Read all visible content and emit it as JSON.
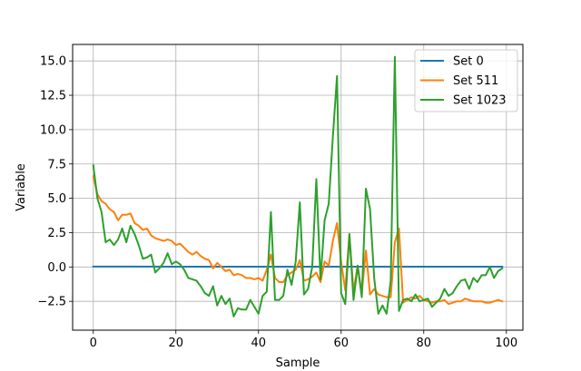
{
  "chart_data": {
    "type": "line",
    "title": "",
    "xlabel": "Sample",
    "ylabel": "Variable",
    "xlim": [
      -5,
      104
    ],
    "ylim": [
      -4.6,
      16.2
    ],
    "xticks": [
      0,
      20,
      40,
      60,
      80,
      100
    ],
    "xtick_labels": [
      "0",
      "20",
      "40",
      "60",
      "80",
      "100"
    ],
    "yticks": [
      -2.5,
      0.0,
      2.5,
      5.0,
      7.5,
      10.0,
      12.5,
      15.0
    ],
    "ytick_labels": [
      "−2.5",
      "0.0",
      "2.5",
      "5.0",
      "7.5",
      "10.0",
      "12.5",
      "15.0"
    ],
    "grid": true,
    "legend_position": "top-right",
    "series": [
      {
        "name": "Set 0",
        "color": "#1f77b4",
        "x": [
          0,
          10,
          20,
          30,
          40,
          50,
          60,
          70,
          80,
          90,
          99
        ],
        "y": [
          0.03,
          0.03,
          0.02,
          0.02,
          0.02,
          0.02,
          0.02,
          0.02,
          0.02,
          0.02,
          0.02
        ]
      },
      {
        "name": "Set 511",
        "color": "#ff7f0e",
        "x": [
          0,
          1,
          2,
          3,
          4,
          5,
          6,
          7,
          8,
          9,
          10,
          11,
          12,
          13,
          14,
          15,
          16,
          17,
          18,
          19,
          20,
          21,
          22,
          23,
          24,
          25,
          26,
          27,
          28,
          29,
          30,
          31,
          32,
          33,
          34,
          35,
          36,
          37,
          38,
          39,
          40,
          41,
          42,
          43,
          44,
          45,
          46,
          47,
          48,
          49,
          50,
          51,
          52,
          53,
          54,
          55,
          56,
          57,
          58,
          59,
          60,
          61,
          62,
          63,
          64,
          65,
          66,
          67,
          68,
          69,
          70,
          71,
          72,
          73,
          74,
          75,
          76,
          77,
          78,
          79,
          80,
          81,
          82,
          83,
          84,
          85,
          86,
          87,
          88,
          89,
          90,
          91,
          92,
          93,
          94,
          95,
          96,
          97,
          98,
          99
        ],
        "y": [
          6.6,
          5.3,
          4.8,
          4.6,
          4.2,
          4.0,
          3.4,
          3.8,
          3.8,
          3.9,
          3.2,
          3.0,
          2.7,
          2.8,
          2.3,
          2.1,
          2.0,
          1.9,
          2.0,
          1.9,
          1.6,
          1.7,
          1.4,
          1.1,
          0.9,
          1.1,
          0.8,
          0.6,
          0.5,
          -0.1,
          0.3,
          0.0,
          -0.3,
          -0.2,
          -0.6,
          -0.5,
          -0.6,
          -0.8,
          -0.8,
          -0.9,
          -0.8,
          -1.0,
          -0.2,
          0.9,
          -0.8,
          -1.1,
          -1.1,
          -0.6,
          -0.4,
          -0.2,
          0.5,
          -1.0,
          -0.9,
          -0.7,
          -0.4,
          -1.1,
          0.4,
          0.1,
          1.9,
          3.2,
          0.4,
          -1.7,
          2.4,
          -1.8,
          0.1,
          -1.9,
          1.2,
          -2.0,
          -1.6,
          -2.0,
          -2.1,
          -2.2,
          -2.2,
          1.8,
          2.8,
          -2.6,
          -2.4,
          -2.2,
          -2.3,
          -2.1,
          -2.4,
          -2.5,
          -2.6,
          -2.5,
          -2.5,
          -2.4,
          -2.7,
          -2.6,
          -2.5,
          -2.5,
          -2.3,
          -2.4,
          -2.5,
          -2.5,
          -2.5,
          -2.6,
          -2.6,
          -2.5,
          -2.4,
          -2.5
        ]
      },
      {
        "name": "Set 1023",
        "color": "#2ca02c",
        "x": [
          0,
          1,
          2,
          3,
          4,
          5,
          6,
          7,
          8,
          9,
          10,
          11,
          12,
          13,
          14,
          15,
          16,
          17,
          18,
          19,
          20,
          21,
          22,
          23,
          24,
          25,
          26,
          27,
          28,
          29,
          30,
          31,
          32,
          33,
          34,
          35,
          36,
          37,
          38,
          39,
          40,
          41,
          42,
          43,
          44,
          45,
          46,
          47,
          48,
          49,
          50,
          51,
          52,
          53,
          54,
          55,
          56,
          57,
          58,
          59,
          60,
          61,
          62,
          63,
          64,
          65,
          66,
          67,
          68,
          69,
          70,
          71,
          72,
          73,
          74,
          75,
          76,
          77,
          78,
          79,
          80,
          81,
          82,
          83,
          84,
          85,
          86,
          87,
          88,
          89,
          90,
          91,
          92,
          93,
          94,
          95,
          96,
          97,
          98,
          99
        ],
        "y": [
          7.4,
          5.0,
          4.0,
          1.8,
          2.0,
          1.6,
          2.0,
          2.8,
          1.8,
          3.0,
          2.4,
          1.6,
          0.6,
          0.7,
          0.9,
          -0.4,
          -0.1,
          0.3,
          1.0,
          0.2,
          0.4,
          0.2,
          -0.2,
          -0.8,
          -0.9,
          -1.0,
          -1.4,
          -1.9,
          -2.1,
          -1.4,
          -2.8,
          -2.1,
          -2.7,
          -2.3,
          -3.6,
          -3.0,
          -3.1,
          -3.1,
          -2.4,
          -2.9,
          -3.4,
          -2.1,
          -1.8,
          4.0,
          -2.4,
          -2.4,
          -2.1,
          -0.2,
          -1.3,
          0.4,
          4.7,
          -2.0,
          -1.6,
          0.0,
          6.4,
          -0.9,
          3.4,
          4.6,
          9.5,
          13.9,
          -1.9,
          -2.7,
          2.4,
          -2.4,
          0.1,
          -2.2,
          5.7,
          4.2,
          -0.8,
          -3.4,
          -2.8,
          -3.4,
          -1.0,
          15.3,
          -3.2,
          -2.4,
          -2.3,
          -2.5,
          -2.0,
          -2.5,
          -2.4,
          -2.3,
          -2.9,
          -2.6,
          -2.3,
          -1.6,
          -2.1,
          -1.9,
          -1.4,
          -1.0,
          -0.9,
          -1.6,
          -0.8,
          -1.1,
          -0.6,
          -0.6,
          0.0,
          -0.8,
          -0.3,
          -0.1
        ]
      }
    ]
  }
}
